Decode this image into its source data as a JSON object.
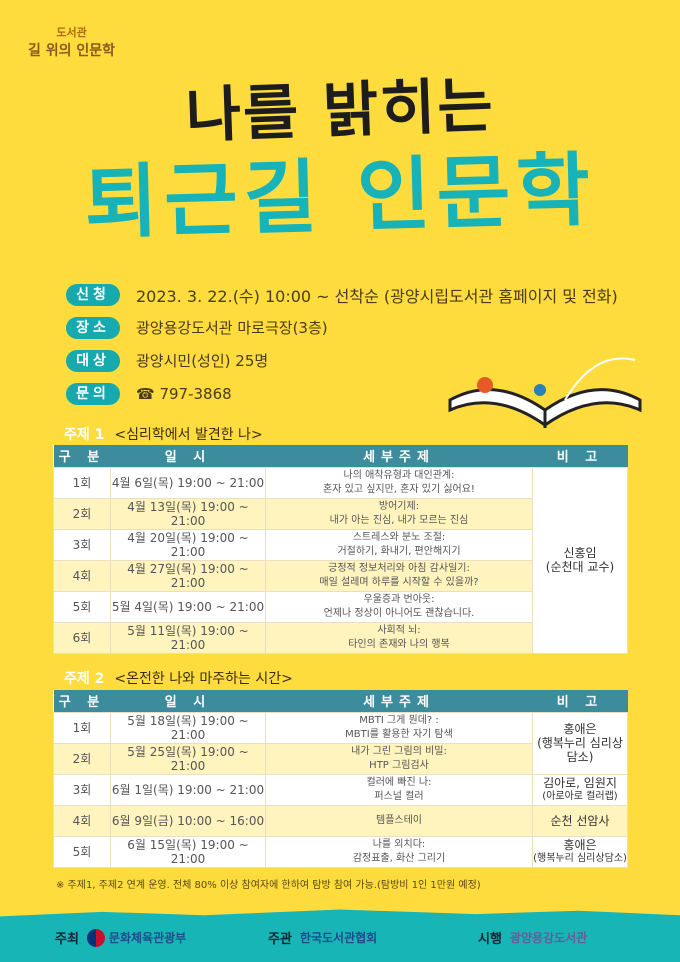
{
  "logo": {
    "small": "도서관",
    "main": "길 위의 인문학"
  },
  "title": {
    "line1": "나를 밝히는",
    "line2": "퇴근길 인문학"
  },
  "info": [
    {
      "label": "신청",
      "value": "2023. 3. 22.(수) 10:00 ~ 선착순 (광양시립도서관 홈페이지 및 전화)"
    },
    {
      "label": "장소",
      "value": "광양용강도서관 마로극장(3층)"
    },
    {
      "label": "대상",
      "value": "광양시민(성인) 25명"
    },
    {
      "label": "문의",
      "value": "☎ 797-3868"
    }
  ],
  "headers": [
    "구 분",
    "일 시",
    "세부주제",
    "비 고"
  ],
  "theme1": {
    "num": "주제 1",
    "title": "<심리학에서 발견한 나>",
    "rows": [
      {
        "no": "1회",
        "date": "4월  6일(목) 19:00 ~ 21:00",
        "topic1": "나의 애착유형과 대인관계:",
        "topic2": "혼자 있고 싶지만, 혼자 있기 싫어요!"
      },
      {
        "no": "2회",
        "date": "4월 13일(목) 19:00 ~ 21:00",
        "topic1": "방어기제:",
        "topic2": "내가 아는 진심, 내가 모르는 진심"
      },
      {
        "no": "3회",
        "date": "4월 20일(목) 19:00 ~ 21:00",
        "topic1": "스트레스와 분노 조절:",
        "topic2": "거절하기, 화내기, 편안해지기"
      },
      {
        "no": "4회",
        "date": "4월 27일(목) 19:00 ~ 21:00",
        "topic1": "긍정적 정보처리와 아침 감사일기:",
        "topic2": "매일 설레며 하루를 시작할 수 있을까?"
      },
      {
        "no": "5회",
        "date": "5월  4일(목) 19:00 ~ 21:00",
        "topic1": "우울증과 번아웃:",
        "topic2": "언제나 정상이 아니어도 괜찮습니다."
      },
      {
        "no": "6회",
        "date": "5월 11일(목) 19:00 ~ 21:00",
        "topic1": "사회적 뇌:",
        "topic2": "타인의 존재와 나의 행복"
      }
    ],
    "note1": "신홍임",
    "note2": "(순천대 교수)"
  },
  "theme2": {
    "num": "주제 2",
    "title": "<온전한 나와 마주하는 시간>",
    "rows": [
      {
        "no": "1회",
        "date": "5월 18일(목) 19:00 ~ 21:00",
        "topic1": "MBTI 그게 뭔데? :",
        "topic2": "MBTI를 활용한 자기 탐색"
      },
      {
        "no": "2회",
        "date": "5월 25일(목) 19:00 ~ 21:00",
        "topic1": "내가 그린 그림의 비밀:",
        "topic2": "HTP 그림검사"
      },
      {
        "no": "3회",
        "date": "6월  1일(목) 19:00 ~ 21:00",
        "topic1": "컬러에 빠진 나:",
        "topic2": "퍼스널 컬러",
        "n1": "김아로, 임원지",
        "n2": "(아로아로 컬러랩)"
      },
      {
        "no": "4회",
        "date": "6월  9일(금) 10:00 ~ 16:00",
        "topic1": "템플스테이",
        "topic2": "",
        "n1": "순천 선암사",
        "n2": ""
      },
      {
        "no": "5회",
        "date": "6월 15일(목) 19:00 ~ 21:00",
        "topic1": "나를 외치다:",
        "topic2": "감정표출, 화산 그리기",
        "n1": "홍애은",
        "n2": "(행복누리 심리상담소)"
      }
    ],
    "note1": "홍애은",
    "note2": "(행복누리 심리상담소)"
  },
  "footnote": "※ 주제1, 주제2 연계 운영.  전체 80% 이상 참여자에 한하여 탐방 참여 가능.(탐방비 1인 1만원 예정)",
  "orgs": [
    {
      "label": "주최",
      "name": "문화체육관광부"
    },
    {
      "label": "주관",
      "name": "한국도서관협회"
    },
    {
      "label": "시행",
      "name": "광양용강도서관"
    }
  ],
  "colors": {
    "background": "#FEDC3E",
    "teal": "#17B3B9",
    "header": "#3C8C9E",
    "alt_row": "#FFF3BE"
  }
}
